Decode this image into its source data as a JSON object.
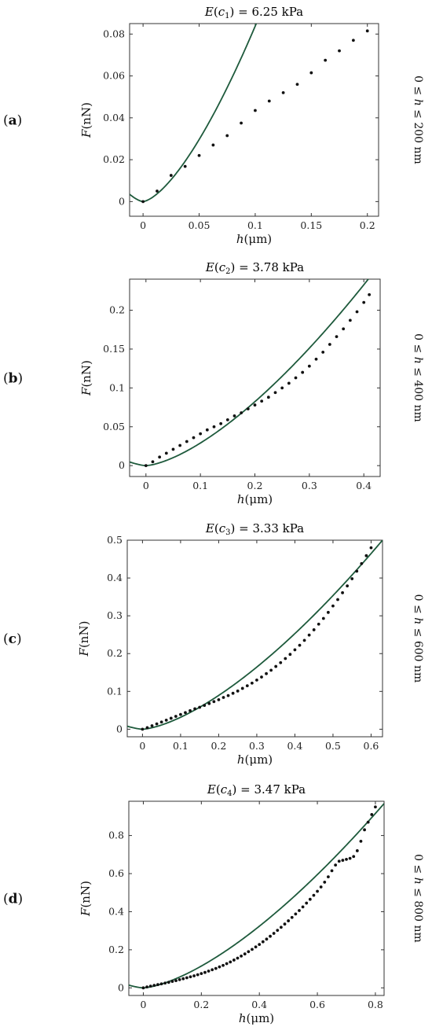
{
  "colors": {
    "fit_curve": "#1e5a3c",
    "data_points": "#111111",
    "axes": "#333333"
  },
  "chart_data": [
    {
      "type": "scatter",
      "panel_label": "(a)",
      "title": "E(c1) = 6.25 kPa",
      "title_parts": {
        "e": "E",
        "c": "c",
        "sub": "1",
        "rest": " = 6.25 kPa"
      },
      "xlabel": "h(μm)",
      "xlabel_parts": {
        "var": "h",
        "unit": "(μm)"
      },
      "ylabel": "F(nN)",
      "ylabel_parts": {
        "var": "F",
        "unit": "(nN)"
      },
      "range_label": "0 ≤ h ≤ 200 nm",
      "range_parts": {
        "pre": "0 ≤ ",
        "var": "h",
        "post": " ≤ 200 nm"
      },
      "xlim": [
        -0.012,
        0.21
      ],
      "ylim": [
        -0.007,
        0.085
      ],
      "xticks": [
        0,
        0.05,
        0.1,
        0.15,
        0.2
      ],
      "xtick_labels": [
        "0",
        "0.05",
        "0.1",
        "0.15",
        "0.2"
      ],
      "yticks": [
        0,
        0.02,
        0.04,
        0.06,
        0.08
      ],
      "ytick_labels": [
        "0",
        "0.02",
        "0.04",
        "0.06",
        "0.08"
      ],
      "series": [
        {
          "kind": "points",
          "x": [
            0,
            0.0125,
            0.025,
            0.0375,
            0.05,
            0.0625,
            0.075,
            0.0875,
            0.1,
            0.1125,
            0.125,
            0.1375,
            0.15,
            0.1625,
            0.175,
            0.1875,
            0.2
          ],
          "y": [
            0,
            0.005,
            0.0125,
            0.0168,
            0.022,
            0.027,
            0.0315,
            0.0375,
            0.0435,
            0.048,
            0.052,
            0.056,
            0.0615,
            0.0675,
            0.072,
            0.077,
            0.0815
          ]
        },
        {
          "kind": "curve",
          "coef": 2.65,
          "exponent": 1.5
        }
      ]
    },
    {
      "type": "scatter",
      "panel_label": "(b)",
      "title": "E(c2) = 3.78 kPa",
      "title_parts": {
        "e": "E",
        "c": "c",
        "sub": "2",
        "rest": " = 3.78 kPa"
      },
      "xlabel": "h(μm)",
      "xlabel_parts": {
        "var": "h",
        "unit": "(μm)"
      },
      "ylabel": "F(nN)",
      "ylabel_parts": {
        "var": "F",
        "unit": "(nN)"
      },
      "range_label": "0 ≤ h ≤ 400 nm",
      "range_parts": {
        "pre": "0 ≤ ",
        "var": "h",
        "post": " ≤ 400 nm"
      },
      "xlim": [
        -0.03,
        0.43
      ],
      "ylim": [
        -0.014,
        0.24
      ],
      "xticks": [
        0,
        0.1,
        0.2,
        0.3,
        0.4
      ],
      "xtick_labels": [
        "0",
        "0.1",
        "0.2",
        "0.3",
        "0.4"
      ],
      "yticks": [
        0,
        0.05,
        0.1,
        0.15,
        0.2
      ],
      "ytick_labels": [
        "0",
        "0.05",
        "0.1",
        "0.15",
        "0.2"
      ],
      "series": [
        {
          "kind": "points",
          "x": [
            0,
            0.0125,
            0.025,
            0.0375,
            0.05,
            0.0625,
            0.075,
            0.0875,
            0.1,
            0.1125,
            0.125,
            0.1375,
            0.15,
            0.1625,
            0.175,
            0.1875,
            0.2,
            0.2125,
            0.225,
            0.2375,
            0.25,
            0.2625,
            0.275,
            0.2875,
            0.3,
            0.3125,
            0.325,
            0.3375,
            0.35,
            0.3625,
            0.375,
            0.3875,
            0.4,
            0.41
          ],
          "y": [
            0,
            0.005,
            0.011,
            0.016,
            0.021,
            0.026,
            0.031,
            0.036,
            0.041,
            0.046,
            0.05,
            0.054,
            0.059,
            0.064,
            0.068,
            0.073,
            0.078,
            0.083,
            0.088,
            0.094,
            0.1,
            0.106,
            0.113,
            0.12,
            0.128,
            0.137,
            0.146,
            0.156,
            0.166,
            0.176,
            0.187,
            0.198,
            0.21,
            0.22
          ]
        },
        {
          "kind": "curve",
          "coef": 0.92,
          "exponent": 1.5
        }
      ]
    },
    {
      "type": "scatter",
      "panel_label": "(c)",
      "title": "E(c3) = 3.33 kPa",
      "title_parts": {
        "e": "E",
        "c": "c",
        "sub": "3",
        "rest": " = 3.33 kPa"
      },
      "xlabel": "h(μm)",
      "xlabel_parts": {
        "var": "h",
        "unit": "(μm)"
      },
      "ylabel": "F(nN)",
      "ylabel_parts": {
        "var": "F",
        "unit": "(nN)"
      },
      "range_label": "0 ≤ h ≤ 600 nm",
      "range_parts": {
        "pre": "0 ≤ ",
        "var": "h",
        "post": " ≤ 600 nm"
      },
      "xlim": [
        -0.04,
        0.63
      ],
      "ylim": [
        -0.02,
        0.5
      ],
      "xticks": [
        0,
        0.1,
        0.2,
        0.3,
        0.4,
        0.5,
        0.6
      ],
      "xtick_labels": [
        "0",
        "0.1",
        "0.2",
        "0.3",
        "0.4",
        "0.5",
        "0.6"
      ],
      "yticks": [
        0,
        0.1,
        0.2,
        0.3,
        0.4,
        0.5
      ],
      "ytick_labels": [
        "0",
        "0.1",
        "0.2",
        "0.3",
        "0.4",
        "0.5"
      ],
      "series": [
        {
          "kind": "points",
          "x": [
            0,
            0.0125,
            0.025,
            0.0375,
            0.05,
            0.0625,
            0.075,
            0.0875,
            0.1,
            0.1125,
            0.125,
            0.1375,
            0.15,
            0.1625,
            0.175,
            0.1875,
            0.2,
            0.2125,
            0.225,
            0.2375,
            0.25,
            0.2625,
            0.275,
            0.2875,
            0.3,
            0.3125,
            0.325,
            0.3375,
            0.35,
            0.3625,
            0.375,
            0.3875,
            0.4,
            0.4125,
            0.425,
            0.4375,
            0.45,
            0.4625,
            0.475,
            0.4875,
            0.5,
            0.5125,
            0.525,
            0.5375,
            0.55,
            0.5625,
            0.575,
            0.5875,
            0.6
          ],
          "y": [
            0,
            0.004,
            0.009,
            0.014,
            0.019,
            0.024,
            0.029,
            0.034,
            0.039,
            0.044,
            0.049,
            0.054,
            0.058,
            0.063,
            0.068,
            0.073,
            0.078,
            0.084,
            0.089,
            0.095,
            0.101,
            0.108,
            0.115,
            0.122,
            0.13,
            0.138,
            0.147,
            0.156,
            0.166,
            0.176,
            0.187,
            0.198,
            0.21,
            0.222,
            0.235,
            0.249,
            0.263,
            0.278,
            0.293,
            0.309,
            0.326,
            0.343,
            0.361,
            0.379,
            0.398,
            0.418,
            0.438,
            0.459,
            0.48
          ]
        },
        {
          "kind": "curve",
          "coef": 1.0,
          "exponent": 1.5
        }
      ]
    },
    {
      "type": "scatter",
      "panel_label": "(d)",
      "title": "E(c4) = 3.47 kPa",
      "title_parts": {
        "e": "E",
        "c": "c",
        "sub": "4",
        "rest": " = 3.47 kPa"
      },
      "xlabel": "h(μm)",
      "xlabel_parts": {
        "var": "h",
        "unit": "(μm)"
      },
      "ylabel": "F(nN)",
      "ylabel_parts": {
        "var": "F",
        "unit": "(nN)"
      },
      "range_label": "0 ≤ h ≤ 800 nm",
      "range_parts": {
        "pre": "0 ≤ ",
        "var": "h",
        "post": " ≤ 800 nm"
      },
      "xlim": [
        -0.05,
        0.83
      ],
      "ylim": [
        -0.04,
        0.98
      ],
      "xticks": [
        0,
        0.2,
        0.4,
        0.6,
        0.8
      ],
      "xtick_labels": [
        "0",
        "0.2",
        "0.4",
        "0.6",
        "0.8"
      ],
      "yticks": [
        0,
        0.2,
        0.4,
        0.6,
        0.8
      ],
      "ytick_labels": [
        "0",
        "0.2",
        "0.4",
        "0.6",
        "0.8"
      ],
      "series": [
        {
          "kind": "points",
          "x": [
            0,
            0.0125,
            0.025,
            0.0375,
            0.05,
            0.0625,
            0.075,
            0.0875,
            0.1,
            0.1125,
            0.125,
            0.1375,
            0.15,
            0.1625,
            0.175,
            0.1875,
            0.2,
            0.2125,
            0.225,
            0.2375,
            0.25,
            0.2625,
            0.275,
            0.2875,
            0.3,
            0.3125,
            0.325,
            0.3375,
            0.35,
            0.3625,
            0.375,
            0.3875,
            0.4,
            0.4125,
            0.425,
            0.4375,
            0.45,
            0.4625,
            0.475,
            0.4875,
            0.5,
            0.5125,
            0.525,
            0.5375,
            0.55,
            0.5625,
            0.575,
            0.5875,
            0.6,
            0.6125,
            0.625,
            0.6375,
            0.65,
            0.6625,
            0.675,
            0.6875,
            0.7,
            0.7125,
            0.725,
            0.7375,
            0.75,
            0.7625,
            0.775,
            0.7875,
            0.8
          ],
          "y": [
            0,
            0.005,
            0.009,
            0.013,
            0.017,
            0.021,
            0.025,
            0.029,
            0.034,
            0.038,
            0.043,
            0.048,
            0.053,
            0.058,
            0.063,
            0.069,
            0.075,
            0.081,
            0.088,
            0.095,
            0.102,
            0.11,
            0.118,
            0.127,
            0.136,
            0.146,
            0.156,
            0.167,
            0.178,
            0.19,
            0.202,
            0.215,
            0.228,
            0.242,
            0.256,
            0.271,
            0.286,
            0.302,
            0.318,
            0.335,
            0.352,
            0.37,
            0.388,
            0.406,
            0.425,
            0.445,
            0.465,
            0.486,
            0.507,
            0.53,
            0.555,
            0.583,
            0.615,
            0.645,
            0.665,
            0.67,
            0.675,
            0.68,
            0.69,
            0.72,
            0.77,
            0.83,
            0.87,
            0.91,
            0.95
          ]
        },
        {
          "kind": "curve",
          "coef": 1.28,
          "exponent": 1.5
        }
      ]
    }
  ]
}
